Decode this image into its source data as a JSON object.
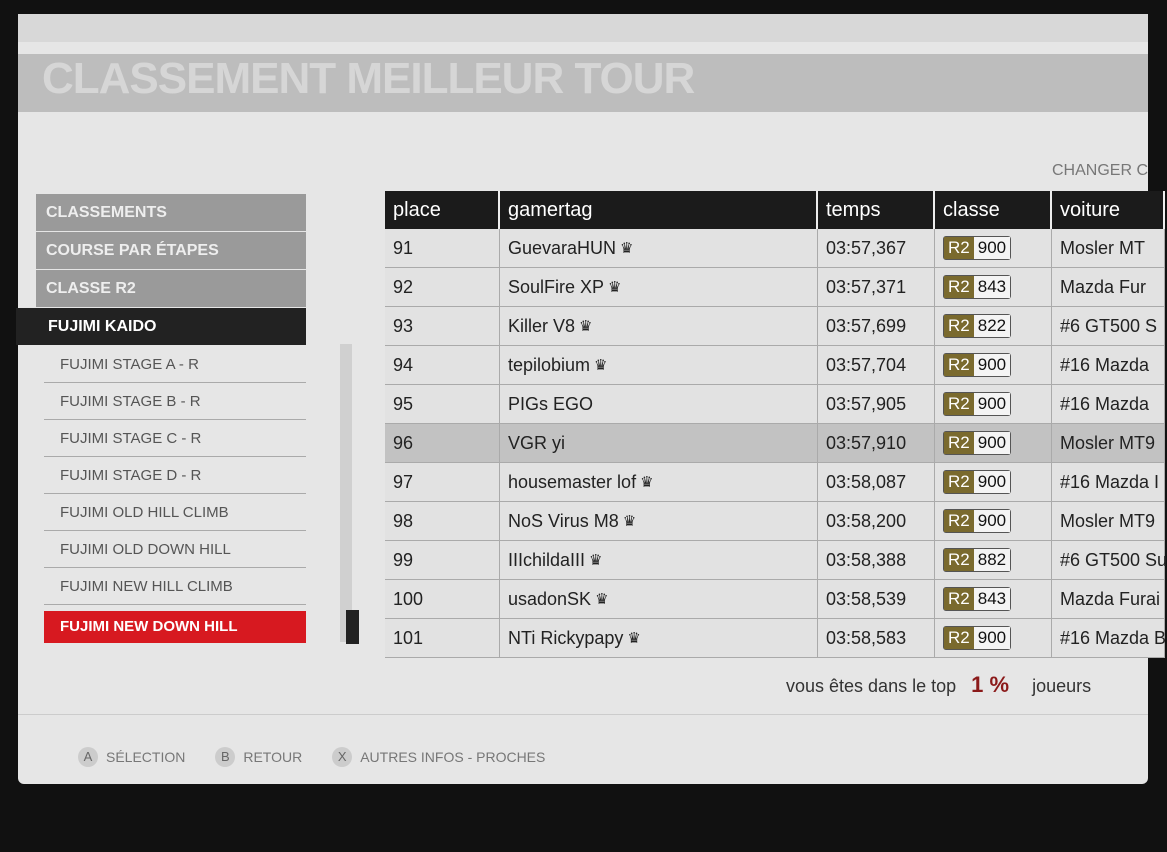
{
  "title": "CLASSEMENT MEILLEUR TOUR",
  "change_label": "CHANGER C",
  "menu": {
    "breadcrumbs": [
      "CLASSEMENTS",
      "COURSE PAR ÉTAPES",
      "CLASSE R2"
    ],
    "active": "FUJIMI KAIDO",
    "items": [
      "FUJIMI STAGE A - R",
      "FUJIMI STAGE B - R",
      "FUJIMI STAGE C - R",
      "FUJIMI STAGE D - R",
      "FUJIMI OLD HILL CLIMB",
      "FUJIMI OLD DOWN HILL",
      "FUJIMI NEW HILL CLIMB"
    ],
    "selected": "FUJIMI NEW DOWN HILL"
  },
  "table": {
    "headers": [
      "place",
      "gamertag",
      "temps",
      "classe",
      "voiture"
    ],
    "rows": [
      {
        "place": "91",
        "gamertag": "GuevaraHUN",
        "crown": true,
        "temps": "03:57,367",
        "class": "R2",
        "pi": "900",
        "voiture": "Mosler MT"
      },
      {
        "place": "92",
        "gamertag": "SoulFire XP",
        "crown": true,
        "temps": "03:57,371",
        "class": "R2",
        "pi": "843",
        "voiture": "Mazda Fur"
      },
      {
        "place": "93",
        "gamertag": "Killer V8",
        "crown": true,
        "temps": "03:57,699",
        "class": "R2",
        "pi": "822",
        "voiture": "#6 GT500 S"
      },
      {
        "place": "94",
        "gamertag": "tepilobium",
        "crown": true,
        "temps": "03:57,704",
        "class": "R2",
        "pi": "900",
        "voiture": "#16 Mazda"
      },
      {
        "place": "95",
        "gamertag": "PIGs EGO",
        "crown": false,
        "temps": "03:57,905",
        "class": "R2",
        "pi": "900",
        "voiture": "#16 Mazda"
      },
      {
        "place": "96",
        "gamertag": "VGR yi",
        "crown": false,
        "temps": "03:57,910",
        "class": "R2",
        "pi": "900",
        "voiture": "Mosler MT9",
        "highlight": true
      },
      {
        "place": "97",
        "gamertag": "housemaster lof",
        "crown": true,
        "temps": "03:58,087",
        "class": "R2",
        "pi": "900",
        "voiture": "#16 Mazda I"
      },
      {
        "place": "98",
        "gamertag": "NoS Virus M8",
        "crown": true,
        "temps": "03:58,200",
        "class": "R2",
        "pi": "900",
        "voiture": "Mosler MT9"
      },
      {
        "place": "99",
        "gamertag": "IIIchildaIII",
        "crown": true,
        "temps": "03:58,388",
        "class": "R2",
        "pi": "882",
        "voiture": "#6 GT500 Su"
      },
      {
        "place": "100",
        "gamertag": "usadonSK",
        "crown": true,
        "temps": "03:58,539",
        "class": "R2",
        "pi": "843",
        "voiture": "Mazda Furai"
      },
      {
        "place": "101",
        "gamertag": "NTi Rickypapy",
        "crown": true,
        "temps": "03:58,583",
        "class": "R2",
        "pi": "900",
        "voiture": "#16 Mazda B"
      }
    ]
  },
  "top": {
    "prefix": "vous êtes dans le top",
    "value": "1 %",
    "suffix": "joueurs"
  },
  "footer": [
    {
      "key": "A",
      "label": "SÉLECTION"
    },
    {
      "key": "B",
      "label": "RETOUR"
    },
    {
      "key": "X",
      "label": "AUTRES INFOS - PROCHES"
    }
  ],
  "colors": {
    "selected": "#d71920",
    "class_badge": "#7a6a2e",
    "top_value": "#8b1a1a"
  }
}
